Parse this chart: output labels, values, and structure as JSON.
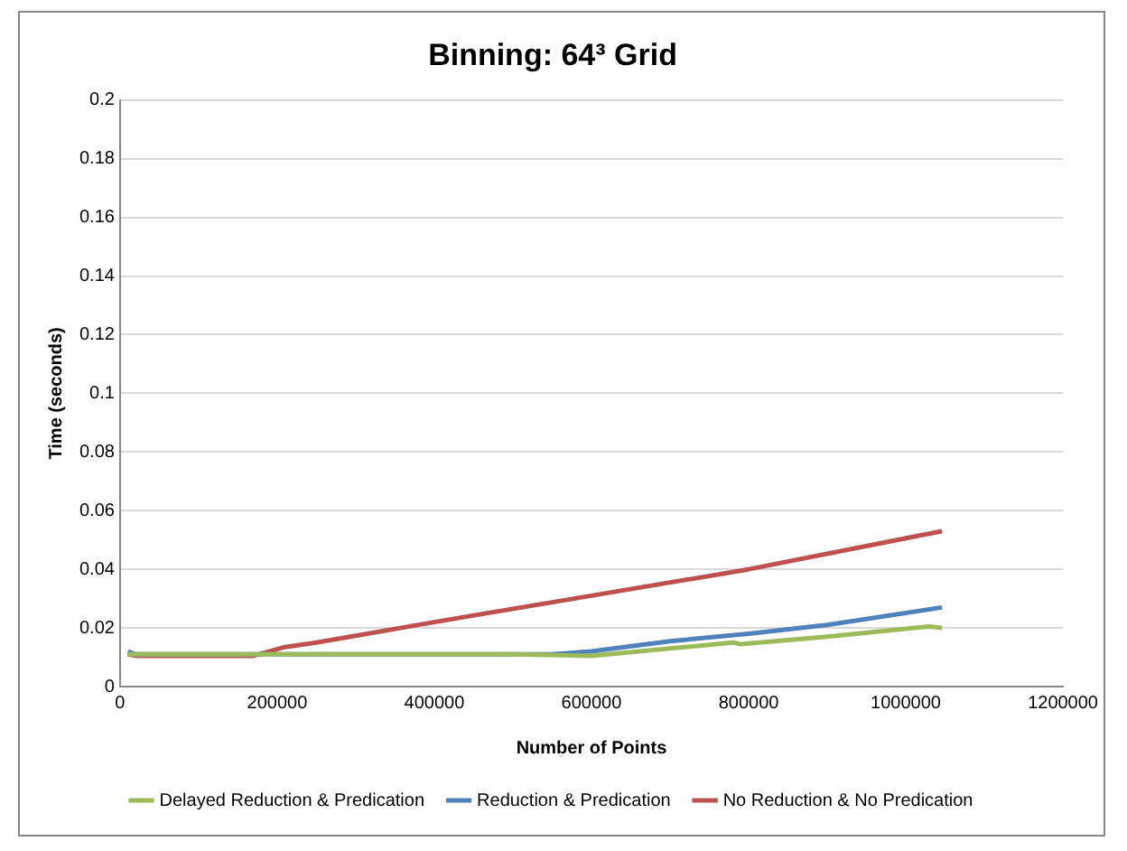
{
  "chart_data": {
    "type": "line",
    "title": "Binning: 64³ Grid",
    "xlabel": "Number of Points",
    "ylabel": "Time (seconds)",
    "xlim": [
      0,
      1200000
    ],
    "xticks": [
      0,
      200000,
      400000,
      600000,
      800000,
      1000000,
      1200000
    ],
    "ylim": [
      0,
      0.2
    ],
    "yticks": [
      0,
      0.02,
      0.04,
      0.06,
      0.08,
      0.1,
      0.12,
      0.14,
      0.16,
      0.18,
      0.2
    ],
    "grid": "y",
    "legend": "bottom",
    "marker": "none",
    "line_style": "solid",
    "series": [
      {
        "name": "Delayed Reduction & Predication",
        "color": "#9bbb59",
        "x": [
          10000,
          100000,
          200000,
          300000,
          400000,
          500000,
          600000,
          700000,
          780000,
          790000,
          900000,
          1030000,
          1046000
        ],
        "values": [
          0.011,
          0.011,
          0.011,
          0.011,
          0.011,
          0.011,
          0.0105,
          0.013,
          0.015,
          0.0145,
          0.017,
          0.0205,
          0.02
        ]
      },
      {
        "name": "Reduction & Predication",
        "color": "#4f81bd",
        "x": [
          10000,
          20000,
          100000,
          200000,
          300000,
          400000,
          500000,
          550000,
          600000,
          700000,
          800000,
          900000,
          1046000
        ],
        "values": [
          0.012,
          0.011,
          0.011,
          0.011,
          0.011,
          0.011,
          0.011,
          0.011,
          0.012,
          0.0155,
          0.018,
          0.021,
          0.027
        ]
      },
      {
        "name": "No Reduction & No Predication",
        "color": "#c0504d",
        "x": [
          10000,
          20000,
          100000,
          170000,
          210000,
          250000,
          400000,
          600000,
          800000,
          1046000
        ],
        "values": [
          0.011,
          0.0105,
          0.0105,
          0.0105,
          0.0135,
          0.015,
          0.022,
          0.031,
          0.04,
          0.053
        ]
      }
    ]
  }
}
